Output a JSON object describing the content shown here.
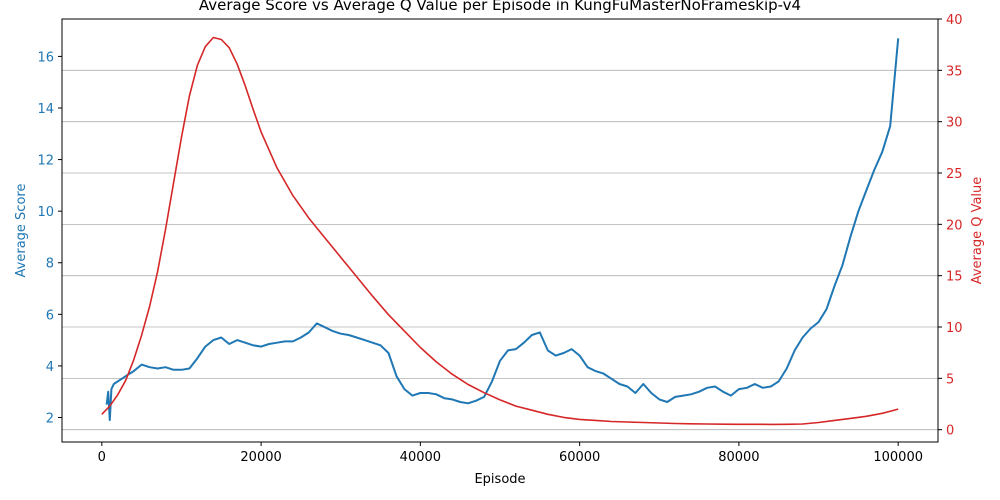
{
  "chart_data": {
    "type": "line",
    "title": "Average Score vs Average Q Value per Episode in KungFuMasterNoFrameskip-v4",
    "xlabel": "Episode",
    "xlim": [
      -5000,
      105000
    ],
    "x_ticks": [
      0,
      20000,
      40000,
      60000,
      80000,
      100000
    ],
    "x_tick_labels": [
      "0",
      "20000",
      "40000",
      "60000",
      "80000",
      "100000"
    ],
    "grid": "horizontal (right axis)",
    "y_left": {
      "label": "Average Score",
      "color": "#1f77b4",
      "ylim": [
        1.05,
        17.45
      ],
      "ticks": [
        2,
        4,
        6,
        8,
        10,
        12,
        14,
        16
      ],
      "tick_labels": [
        "2",
        "4",
        "6",
        "8",
        "10",
        "12",
        "14",
        "16"
      ]
    },
    "y_right": {
      "label": "Average Q Value",
      "color": "#d62728",
      "ylim": [
        -1.2,
        40.0
      ],
      "ticks": [
        0,
        5,
        10,
        15,
        20,
        25,
        30,
        35,
        40
      ],
      "tick_labels": [
        "0",
        "5",
        "10",
        "15",
        "20",
        "25",
        "30",
        "35",
        "40"
      ]
    },
    "series": [
      {
        "axis": "left",
        "color": "#1f77b4",
        "x": [
          0,
          600,
          800,
          1000,
          1200,
          1500,
          2000,
          3000,
          4000,
          5000,
          6000,
          7000,
          8000,
          9000,
          10000,
          11000,
          12000,
          13000,
          14000,
          15000,
          16000,
          17000,
          18000,
          19000,
          20000,
          21000,
          22000,
          23000,
          24000,
          25000,
          26000,
          27000,
          28000,
          29000,
          30000,
          31000,
          32000,
          33000,
          34000,
          35000,
          36000,
          37000,
          38000,
          39000,
          40000,
          41000,
          42000,
          43000,
          44000,
          45000,
          46000,
          47000,
          48000,
          49000,
          50000,
          51000,
          52000,
          53000,
          54000,
          55000,
          56000,
          57000,
          58000,
          59000,
          60000,
          61000,
          62000,
          63000,
          64000,
          65000,
          66000,
          67000,
          68000,
          69000,
          70000,
          71000,
          72000,
          73000,
          74000,
          75000,
          76000,
          77000,
          78000,
          79000,
          80000,
          81000,
          82000,
          83000,
          84000,
          85000,
          86000,
          87000,
          88000,
          89000,
          90000,
          91000,
          92000,
          93000,
          94000,
          95000,
          96000,
          97000,
          98000,
          99000,
          100000
        ],
        "values": [
          null,
          2.5,
          3.0,
          1.9,
          3.1,
          3.3,
          3.4,
          3.6,
          3.8,
          4.05,
          3.95,
          3.9,
          3.95,
          3.85,
          3.85,
          3.9,
          4.3,
          4.75,
          5.0,
          5.1,
          4.85,
          5.0,
          4.9,
          4.8,
          4.75,
          4.85,
          4.9,
          4.95,
          4.95,
          5.1,
          5.3,
          5.65,
          5.5,
          5.35,
          5.25,
          5.2,
          5.1,
          5.0,
          4.9,
          4.8,
          4.5,
          3.6,
          3.1,
          2.85,
          2.95,
          2.95,
          2.9,
          2.75,
          2.7,
          2.6,
          2.55,
          2.65,
          2.8,
          3.4,
          4.2,
          4.6,
          4.65,
          4.9,
          5.2,
          5.3,
          4.6,
          4.4,
          4.5,
          4.65,
          4.4,
          3.95,
          3.8,
          3.7,
          3.5,
          3.3,
          3.2,
          2.95,
          3.3,
          2.95,
          2.7,
          2.6,
          2.8,
          2.85,
          2.9,
          3.0,
          3.15,
          3.2,
          3.0,
          2.85,
          3.1,
          3.15,
          3.3,
          3.15,
          3.2,
          3.4,
          3.9,
          4.6,
          5.1,
          5.45,
          5.7,
          6.2,
          7.1,
          7.9,
          9.0,
          10.0,
          10.8,
          11.6,
          12.3,
          13.3,
          16.7
        ]
      },
      {
        "axis": "right",
        "color": "#d62728",
        "x": [
          0,
          1000,
          2000,
          3000,
          4000,
          5000,
          6000,
          7000,
          8000,
          9000,
          10000,
          11000,
          12000,
          13000,
          14000,
          15000,
          16000,
          17000,
          18000,
          19000,
          20000,
          22000,
          24000,
          26000,
          28000,
          30000,
          32000,
          34000,
          36000,
          38000,
          40000,
          42000,
          44000,
          46000,
          48000,
          50000,
          52000,
          54000,
          56000,
          58000,
          60000,
          62000,
          64000,
          66000,
          68000,
          70000,
          72000,
          74000,
          76000,
          78000,
          80000,
          82000,
          84000,
          86000,
          88000,
          90000,
          92000,
          94000,
          96000,
          98000,
          100000
        ],
        "values": [
          1.5,
          2.3,
          3.4,
          4.8,
          6.8,
          9.2,
          12.0,
          15.4,
          19.5,
          24.0,
          28.5,
          32.5,
          35.5,
          37.3,
          38.2,
          38.0,
          37.2,
          35.6,
          33.5,
          31.2,
          29.0,
          25.5,
          22.8,
          20.6,
          18.7,
          16.8,
          14.9,
          13.0,
          11.2,
          9.6,
          8.0,
          6.6,
          5.4,
          4.4,
          3.6,
          2.9,
          2.3,
          1.9,
          1.5,
          1.2,
          1.0,
          0.9,
          0.8,
          0.75,
          0.7,
          0.65,
          0.6,
          0.57,
          0.55,
          0.53,
          0.52,
          0.52,
          0.51,
          0.52,
          0.55,
          0.7,
          0.9,
          1.1,
          1.3,
          1.6,
          2.0
        ]
      }
    ]
  }
}
